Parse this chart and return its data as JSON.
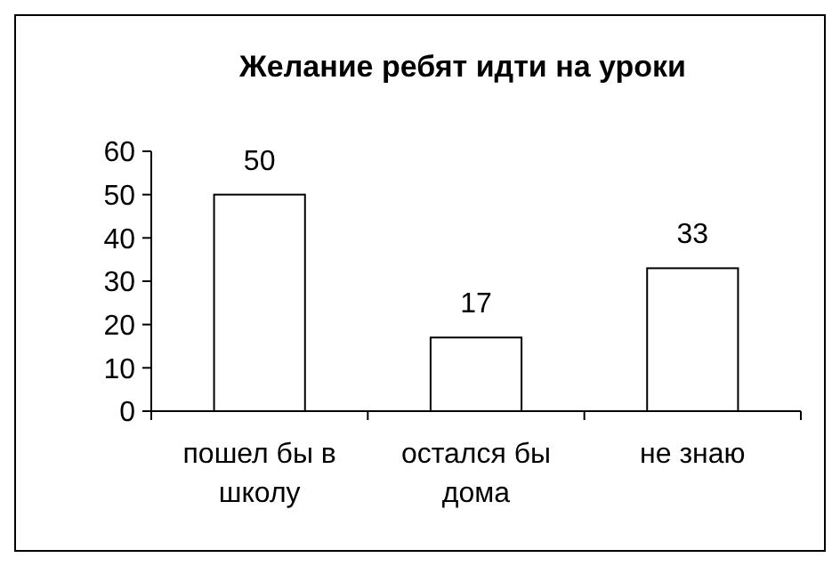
{
  "chart_data": {
    "type": "bar",
    "title": "Желание ребят идти на уроки",
    "categories": [
      "пошел бы в школу",
      "остался бы дома",
      "не знаю"
    ],
    "values": [
      50,
      17,
      33
    ],
    "color": "#ffffff",
    "ylim": [
      0,
      60
    ],
    "yticks": [
      0,
      10,
      20,
      30,
      40,
      50,
      60
    ],
    "grid": false,
    "data_labels": true
  }
}
